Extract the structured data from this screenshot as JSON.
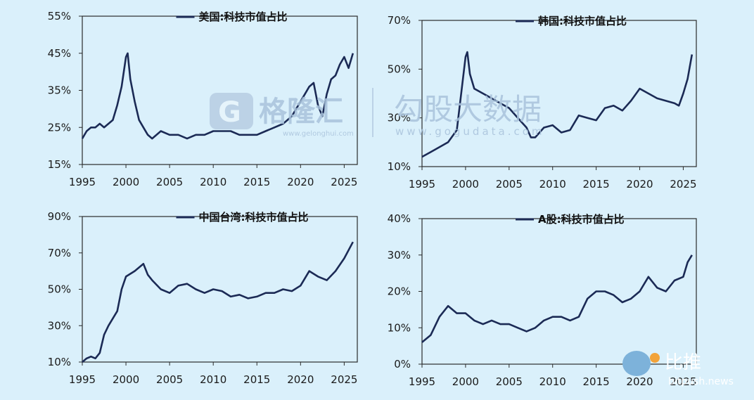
{
  "watermarks": {
    "logo_text": "格隆汇",
    "logo_url": "www.gelonghui.com",
    "brand2": "勾股大数据",
    "brand2_url": "www.gogudata.com",
    "badge_text": "比推",
    "badge_url": "bitpush.news"
  },
  "colors": {
    "background": "#daf0fb",
    "series": "#1b2a55"
  },
  "chart_data": [
    {
      "type": "line",
      "legend": "美国:科技市值占比",
      "legend_position": "top",
      "x_ticks": [
        "1995",
        "2000",
        "2005",
        "2010",
        "2015",
        "2020",
        "2025"
      ],
      "y_ticks": [
        "15%",
        "25%",
        "35%",
        "45%",
        "55%"
      ],
      "xlim": [
        1995,
        2026.5
      ],
      "ylim": [
        15,
        55
      ],
      "series": [
        {
          "x": [
            1995,
            1995.5,
            1996,
            1996.5,
            1997,
            1997.5,
            1998,
            1998.5,
            1999,
            1999.5,
            2000,
            2000.2,
            2000.5,
            2001,
            2001.5,
            2002,
            2002.5,
            2003,
            2004,
            2005,
            2006,
            2007,
            2008,
            2009,
            2010,
            2011,
            2012,
            2013,
            2014,
            2015,
            2016,
            2017,
            2018,
            2018.5,
            2019,
            2020,
            2020.5,
            2021,
            2021.5,
            2022,
            2022.5,
            2023,
            2023.5,
            2024,
            2024.5,
            2025,
            2025.5,
            2026
          ],
          "y": [
            22,
            24,
            25,
            25,
            26,
            25,
            26,
            27,
            31,
            36,
            44,
            45,
            38,
            32,
            27,
            25,
            23,
            22,
            24,
            23,
            23,
            22,
            23,
            23,
            24,
            24,
            24,
            23,
            23,
            23,
            24,
            25,
            26,
            27,
            28,
            32,
            34,
            36,
            37,
            31,
            28,
            34,
            38,
            39,
            42,
            44,
            41,
            45
          ]
        }
      ]
    },
    {
      "type": "line",
      "legend": "韩国:科技市值占比",
      "legend_position": "top",
      "x_ticks": [
        "1995",
        "2000",
        "2005",
        "2010",
        "2015",
        "2020",
        "2025"
      ],
      "y_ticks": [
        "10%",
        "30%",
        "50%",
        "70%"
      ],
      "xlim": [
        1995,
        2026.5
      ],
      "ylim": [
        10,
        70
      ],
      "series": [
        {
          "x": [
            1995,
            1996,
            1997,
            1998,
            1999,
            1999.5,
            2000,
            2000.2,
            2000.5,
            2001,
            2002,
            2003,
            2004,
            2005,
            2006,
            2007,
            2007.5,
            2008,
            2009,
            2010,
            2011,
            2012,
            2013,
            2014,
            2015,
            2016,
            2017,
            2018,
            2019,
            2020,
            2021,
            2022,
            2023,
            2024,
            2024.5,
            2025,
            2025.5,
            2026
          ],
          "y": [
            14,
            16,
            18,
            20,
            25,
            40,
            55,
            57,
            48,
            42,
            40,
            38,
            36,
            34,
            30,
            26,
            22,
            22,
            26,
            27,
            24,
            25,
            31,
            30,
            29,
            34,
            35,
            33,
            37,
            42,
            40,
            38,
            37,
            36,
            35,
            40,
            46,
            56
          ]
        }
      ]
    },
    {
      "type": "line",
      "legend": "中国台湾:科技市值占比",
      "legend_position": "top",
      "x_ticks": [
        "1995",
        "2000",
        "2005",
        "2010",
        "2015",
        "2020",
        "2025"
      ],
      "y_ticks": [
        "10%",
        "30%",
        "50%",
        "70%",
        "90%"
      ],
      "xlim": [
        1995,
        2026.5
      ],
      "ylim": [
        10,
        90
      ],
      "series": [
        {
          "x": [
            1995,
            1995.5,
            1996,
            1996.5,
            1997,
            1997.5,
            1998,
            1999,
            1999.5,
            2000,
            2001,
            2002,
            2002.5,
            2003,
            2004,
            2005,
            2006,
            2007,
            2008,
            2009,
            2010,
            2011,
            2012,
            2013,
            2014,
            2015,
            2016,
            2017,
            2018,
            2019,
            2020,
            2021,
            2022,
            2023,
            2024,
            2025,
            2026
          ],
          "y": [
            10,
            12,
            13,
            12,
            15,
            25,
            30,
            38,
            50,
            57,
            60,
            64,
            58,
            55,
            50,
            48,
            52,
            53,
            50,
            48,
            50,
            49,
            46,
            47,
            45,
            46,
            48,
            48,
            50,
            49,
            52,
            60,
            57,
            55,
            60,
            67,
            76
          ]
        }
      ]
    },
    {
      "type": "line",
      "legend": "A股:科技市值占比",
      "legend_position": "top",
      "x_ticks": [
        "1995",
        "2000",
        "2005",
        "2010",
        "2015",
        "2020",
        "2025"
      ],
      "y_ticks": [
        "0%",
        "10%",
        "20%",
        "30%",
        "40%"
      ],
      "xlim": [
        1995,
        2026.5
      ],
      "ylim": [
        0,
        40
      ],
      "series": [
        {
          "x": [
            1995,
            1996,
            1997,
            1998,
            1999,
            2000,
            2001,
            2002,
            2003,
            2004,
            2005,
            2006,
            2007,
            2008,
            2009,
            2010,
            2011,
            2012,
            2013,
            2014,
            2015,
            2016,
            2017,
            2018,
            2019,
            2020,
            2021,
            2022,
            2023,
            2024,
            2025,
            2025.5,
            2026
          ],
          "y": [
            6,
            8,
            13,
            16,
            14,
            14,
            12,
            11,
            12,
            11,
            11,
            10,
            9,
            10,
            12,
            13,
            13,
            12,
            13,
            18,
            20,
            20,
            19,
            17,
            18,
            20,
            24,
            21,
            20,
            23,
            24,
            28,
            30
          ]
        }
      ]
    }
  ]
}
